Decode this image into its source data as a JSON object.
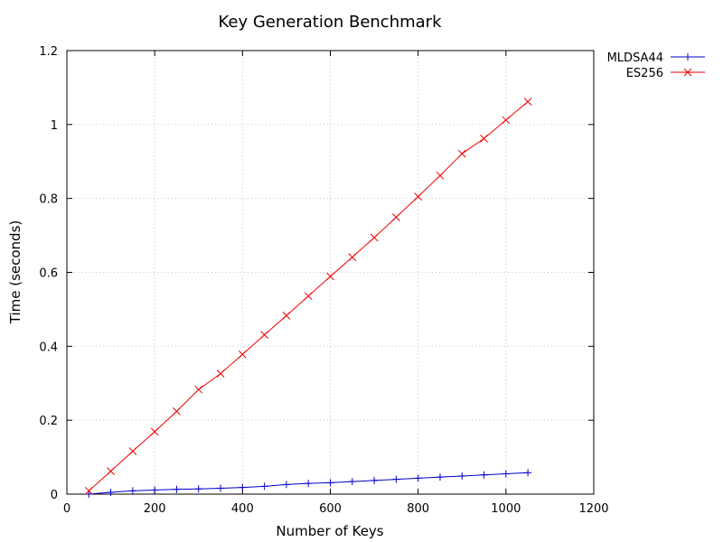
{
  "chart_data": {
    "type": "line",
    "title": "Key Generation Benchmark",
    "xlabel": "Number of Keys",
    "ylabel": "Time (seconds)",
    "xlim": [
      0,
      1200
    ],
    "ylim": [
      0,
      1.2
    ],
    "xticks": [
      0,
      200,
      400,
      600,
      800,
      1000,
      1200
    ],
    "xtick_labels": [
      "0",
      "200",
      "400",
      "600",
      "800",
      "1000",
      "1200"
    ],
    "yticks": [
      0,
      0.2,
      0.4,
      0.6,
      0.8,
      1.0,
      1.2
    ],
    "ytick_labels": [
      "0",
      "0.2",
      "0.4",
      "0.6",
      "0.8",
      "1",
      "1.2"
    ],
    "grid": true,
    "legend_position": "outside-top-right",
    "x": [
      50,
      100,
      150,
      200,
      250,
      300,
      350,
      400,
      450,
      500,
      550,
      600,
      650,
      700,
      750,
      800,
      850,
      900,
      950,
      1000,
      1050
    ],
    "series": [
      {
        "name": "MLDSA44",
        "color": "#0000cc",
        "marker": "plus",
        "values": [
          0.0,
          0.005,
          0.009,
          0.011,
          0.013,
          0.014,
          0.016,
          0.018,
          0.021,
          0.026,
          0.029,
          0.031,
          0.034,
          0.037,
          0.04,
          0.043,
          0.046,
          0.049,
          0.052,
          0.055,
          0.058
        ]
      },
      {
        "name": "ES256",
        "color": "#ee0000",
        "marker": "cross",
        "values": [
          0.009,
          0.062,
          0.116,
          0.169,
          0.224,
          0.283,
          0.326,
          0.378,
          0.431,
          0.483,
          0.536,
          0.589,
          0.641,
          0.694,
          0.749,
          0.805,
          0.862,
          0.921,
          0.962,
          1.012,
          1.062
        ]
      }
    ]
  }
}
